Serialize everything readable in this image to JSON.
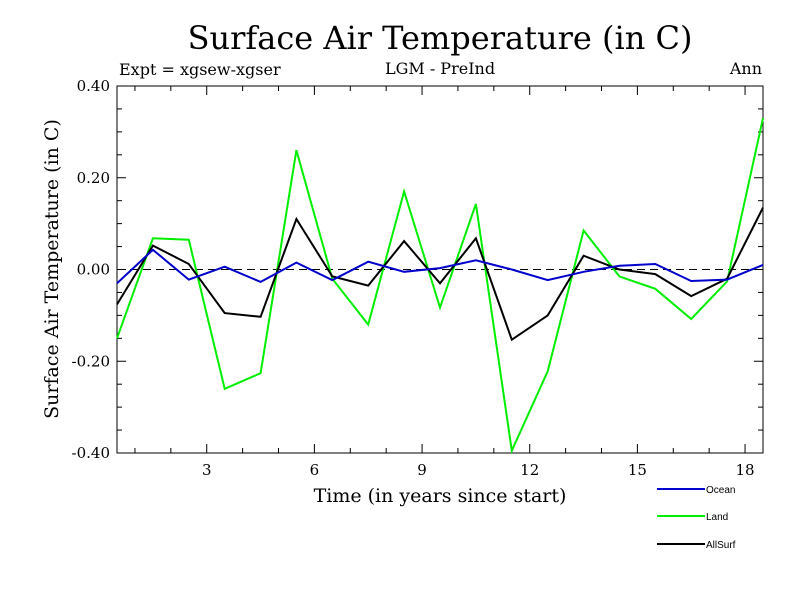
{
  "chart_data": {
    "type": "line",
    "title": "Surface Air Temperature (in C)",
    "subtitle_left": "Expt = xgsew-xgser",
    "subtitle_center": "LGM - PreInd",
    "subtitle_right": "Ann",
    "xlabel": "Time (in years since start)",
    "ylabel": "Surface Air Temperature (in C)",
    "xlim": [
      0.5,
      18.5
    ],
    "ylim": [
      -0.4,
      0.4
    ],
    "xticks": [
      3,
      6,
      9,
      12,
      15,
      18
    ],
    "xtick_labels": [
      "3",
      "6",
      "9",
      "12",
      "15",
      "18"
    ],
    "yticks": [
      -0.4,
      -0.2,
      0.0,
      0.2,
      0.4
    ],
    "ytick_labels": [
      "-0.40",
      "-0.20",
      "0.00",
      "0.20",
      "0.40"
    ],
    "zero_line": true,
    "legend_position": "bottom-right",
    "x": [
      0.5,
      1.5,
      2.5,
      3.5,
      4.5,
      5.5,
      6.5,
      7.5,
      8.5,
      9.5,
      10.5,
      11.5,
      12.5,
      13.5,
      14.5,
      15.5,
      16.5,
      17.5,
      18.5
    ],
    "series": [
      {
        "name": "Ocean",
        "color": "#0000cc",
        "values": [
          -0.03,
          0.043,
          -0.022,
          0.006,
          -0.027,
          0.015,
          -0.023,
          0.017,
          -0.005,
          0.003,
          0.02,
          0.0,
          -0.023,
          -0.005,
          0.008,
          0.012,
          -0.025,
          -0.022,
          0.01
        ]
      },
      {
        "name": "Land",
        "color": "#00ee00",
        "values": [
          -0.15,
          0.068,
          0.065,
          -0.26,
          -0.226,
          0.26,
          -0.02,
          -0.12,
          0.17,
          -0.083,
          0.143,
          -0.395,
          -0.222,
          0.085,
          -0.015,
          -0.042,
          -0.108,
          -0.026,
          0.33
        ]
      },
      {
        "name": "AllSurf",
        "color": "#000000",
        "values": [
          -0.076,
          0.052,
          0.012,
          -0.095,
          -0.103,
          0.11,
          -0.015,
          -0.035,
          0.062,
          -0.03,
          0.068,
          -0.153,
          -0.1,
          0.03,
          0.0,
          -0.01,
          -0.058,
          -0.02,
          0.135
        ]
      }
    ]
  }
}
